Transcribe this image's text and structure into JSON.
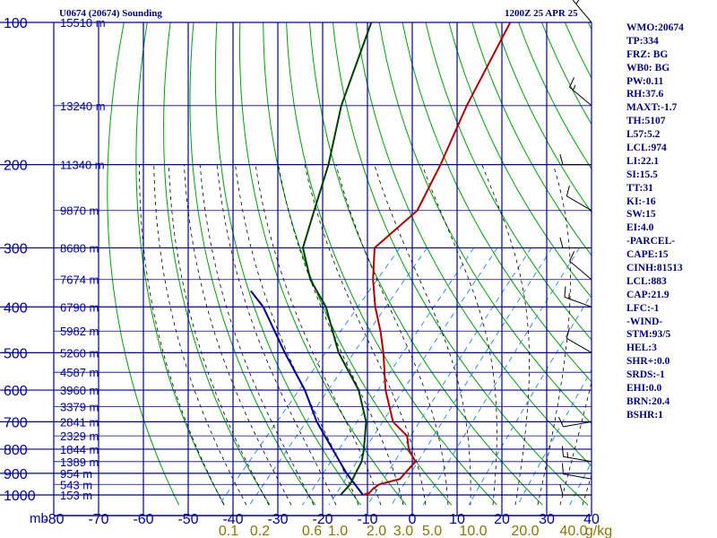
{
  "header": {
    "title_left": "U0674 (20674) Sounding",
    "title_right": "1200Z 25 APR 25"
  },
  "indices": [
    "WMO:20674",
    "TP:334",
    "FRZ: BG",
    "WB0: BG",
    "PW:0.11",
    "RH:37.6",
    "MAXT:-1.7",
    "TH:5107",
    "L57:5.2",
    "LCL:974",
    "LI:22.1",
    "SI:15.5",
    "TT:31",
    "KI:-16",
    "SW:15",
    "EI:4.0",
    "-PARCEL-",
    "CAPE:15",
    "CINH:81513",
    "LCL:883",
    "CAP:21.9",
    "LFC:-1",
    "-WIND-",
    "STM:93/5",
    "HEL:3",
    "SHR+:0.0",
    "SRDS:-1",
    "EHI:0.0",
    "BRN:20.4",
    "BSHR:1"
  ],
  "colors": {
    "grid": "#0000a0",
    "dry_adiabat": "#00a000",
    "moist_adiabat": "#000000",
    "mixing_ratio": "#3090e0",
    "temperature": "#b00000",
    "dewpoint": "#004000",
    "parcel": "#000090",
    "mixing_label": "#8b7500",
    "wind": "#000000"
  },
  "chart_data": {
    "type": "skew-t log-p sounding",
    "pressure_axis": {
      "unit": "mb",
      "ticks": [
        100,
        200,
        300,
        400,
        500,
        600,
        700,
        800,
        900,
        1000
      ],
      "range": [
        100,
        1050
      ]
    },
    "temperature_axis": {
      "ticks": [
        -80,
        -70,
        -60,
        -50,
        -40,
        -30,
        -20,
        -10,
        0,
        10,
        20,
        30,
        40
      ],
      "range": [
        -80,
        40
      ]
    },
    "height_levels": [
      {
        "p": 100,
        "label": "15510 m"
      },
      {
        "p": 150,
        "label": "13240 m"
      },
      {
        "p": 200,
        "label": "11340 m"
      },
      {
        "p": 250,
        "label": "9870 m"
      },
      {
        "p": 300,
        "label": "8680 m"
      },
      {
        "p": 350,
        "label": "7674 m"
      },
      {
        "p": 400,
        "label": "6790 m"
      },
      {
        "p": 450,
        "label": "5982 m"
      },
      {
        "p": 500,
        "label": "5260 m"
      },
      {
        "p": 550,
        "label": "4587 m"
      },
      {
        "p": 600,
        "label": "3960 m"
      },
      {
        "p": 650,
        "label": "3379 m"
      },
      {
        "p": 700,
        "label": "2841 m"
      },
      {
        "p": 750,
        "label": "2329 m"
      },
      {
        "p": 800,
        "label": "1844 m"
      },
      {
        "p": 850,
        "label": "1389 m"
      },
      {
        "p": 900,
        "label": "954 m"
      },
      {
        "p": 950,
        "label": "543 m"
      },
      {
        "p": 1000,
        "label": "153 m"
      }
    ],
    "mixing_ratio_labels": [
      {
        "w": 0.1,
        "label": "0.1"
      },
      {
        "w": 0.2,
        "label": "0.2"
      },
      {
        "w": 0.6,
        "label": "0.6"
      },
      {
        "w": 1.0,
        "label": "1.0"
      },
      {
        "w": 2.0,
        "label": "2.0"
      },
      {
        "w": 3.0,
        "label": "3.0"
      },
      {
        "w": 5.0,
        "label": "5.0"
      },
      {
        "w": 10.0,
        "label": "10.0"
      },
      {
        "w": 20.0,
        "label": "20.0"
      },
      {
        "w": 40.0,
        "label": "40.0"
      }
    ],
    "mixing_ratio_unit": "g/kg",
    "temperature": [
      {
        "p": 1000,
        "t": -11
      },
      {
        "p": 990,
        "t": -10
      },
      {
        "p": 970,
        "t": -10
      },
      {
        "p": 950,
        "t": -9.5
      },
      {
        "p": 925,
        "t": -6
      },
      {
        "p": 850,
        "t": -6
      },
      {
        "p": 800,
        "t": -10
      },
      {
        "p": 750,
        "t": -13
      },
      {
        "p": 700,
        "t": -19
      },
      {
        "p": 600,
        "t": -27
      },
      {
        "p": 500,
        "t": -35
      },
      {
        "p": 450,
        "t": -40
      },
      {
        "p": 400,
        "t": -46
      },
      {
        "p": 350,
        "t": -52
      },
      {
        "p": 300,
        "t": -58
      },
      {
        "p": 250,
        "t": -56
      },
      {
        "p": 200,
        "t": -60
      },
      {
        "p": 150,
        "t": -66
      },
      {
        "p": 100,
        "t": -73
      }
    ],
    "dewpoint": [
      {
        "p": 1000,
        "t": -16
      },
      {
        "p": 950,
        "t": -16
      },
      {
        "p": 900,
        "t": -17
      },
      {
        "p": 850,
        "t": -18
      },
      {
        "p": 800,
        "t": -20
      },
      {
        "p": 700,
        "t": -25
      },
      {
        "p": 600,
        "t": -33
      },
      {
        "p": 500,
        "t": -45
      },
      {
        "p": 400,
        "t": -57
      },
      {
        "p": 350,
        "t": -66
      },
      {
        "p": 300,
        "t": -74
      },
      {
        "p": 250,
        "t": -79
      },
      {
        "p": 200,
        "t": -85
      },
      {
        "p": 150,
        "t": -94
      },
      {
        "p": 100,
        "t": -104
      }
    ],
    "parcel": [
      {
        "p": 1000,
        "t": -11
      },
      {
        "p": 900,
        "t": -19
      },
      {
        "p": 800,
        "t": -27
      },
      {
        "p": 700,
        "t": -36
      },
      {
        "p": 600,
        "t": -45
      },
      {
        "p": 500,
        "t": -57
      },
      {
        "p": 400,
        "t": -71
      },
      {
        "p": 370,
        "t": -77
      }
    ],
    "winds": [
      {
        "p": 1000,
        "dir": 270,
        "spd": 10
      },
      {
        "p": 925,
        "dir": 280,
        "spd": 10
      },
      {
        "p": 850,
        "dir": 280,
        "spd": 15
      },
      {
        "p": 700,
        "dir": 260,
        "spd": 10
      },
      {
        "p": 500,
        "dir": 300,
        "spd": 10
      },
      {
        "p": 400,
        "dir": 290,
        "spd": 15
      },
      {
        "p": 350,
        "dir": 310,
        "spd": 10
      },
      {
        "p": 300,
        "dir": 270,
        "spd": 10
      },
      {
        "p": 250,
        "dir": 300,
        "spd": 10
      },
      {
        "p": 200,
        "dir": 270,
        "spd": 10
      },
      {
        "p": 150,
        "dir": 310,
        "spd": 15
      },
      {
        "p": 100,
        "dir": 320,
        "spd": 15
      }
    ]
  }
}
